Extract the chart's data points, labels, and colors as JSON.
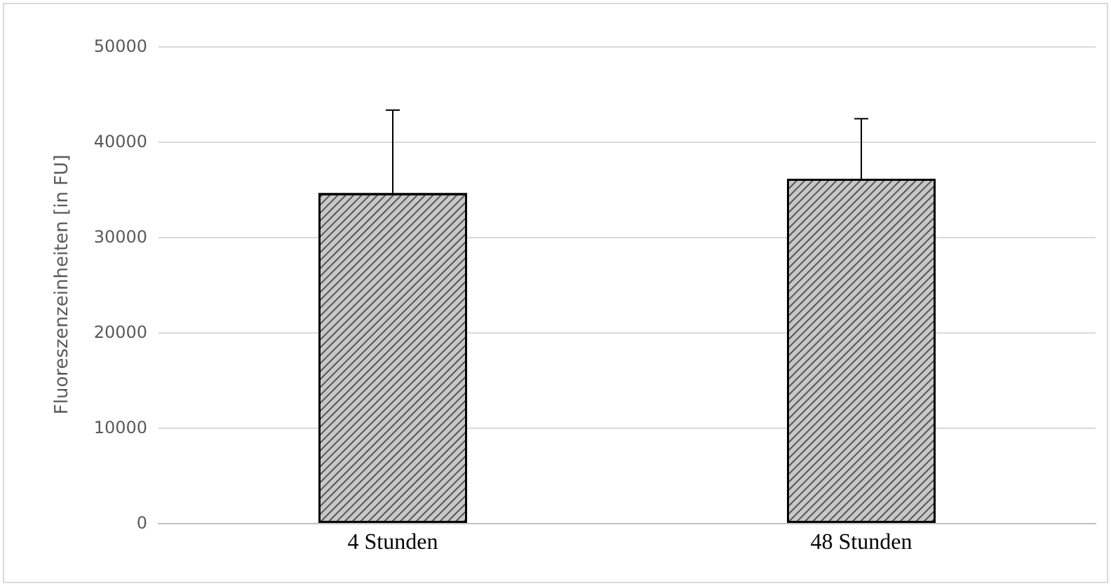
{
  "chart_data": {
    "type": "bar",
    "ylabel": "Fluoreszenzeinheiten [in FU]",
    "categories": [
      "4 Stunden",
      "48 Stunden"
    ],
    "values": [
      34600,
      36100
    ],
    "errors": [
      [
        34600,
        43300
      ],
      [
        36100,
        42400
      ]
    ],
    "color": "#c8c8c8",
    "ylim": [
      0,
      50000
    ],
    "yticks": [
      0,
      10000,
      20000,
      30000,
      40000,
      50000
    ],
    "grid": "y"
  }
}
